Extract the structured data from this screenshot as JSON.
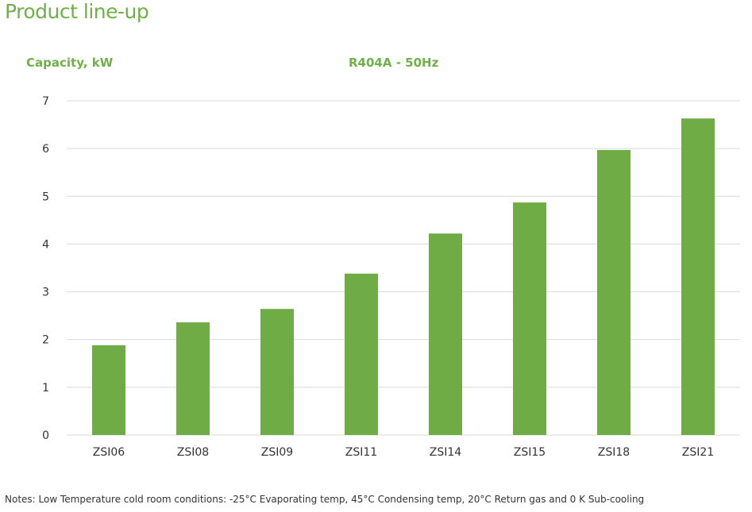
{
  "page": {
    "title": "Product line-up",
    "notes": "Notes: Low Temperature cold room conditions: -25°C Evaporating temp, 45°C Condensing temp,  20°C Return gas and 0 K Sub-cooling"
  },
  "chart_data": {
    "type": "bar",
    "title": "R404A - 50Hz",
    "xlabel": "",
    "ylabel": "Capacity, kW",
    "categories": [
      "ZSI06",
      "ZSI08",
      "ZSI09",
      "ZSI11",
      "ZSI14",
      "ZSI15",
      "ZSI18",
      "ZSI21"
    ],
    "values": [
      1.88,
      2.36,
      2.64,
      3.38,
      4.22,
      4.87,
      5.97,
      6.63
    ],
    "ylim": [
      0,
      7
    ],
    "yticks": [
      0,
      1,
      2,
      3,
      4,
      5,
      6,
      7
    ],
    "grid": true,
    "legend": "none",
    "colors": {
      "bar": "#6fac46",
      "grid": "#d9d9d9",
      "accent": "#6fb04a"
    }
  }
}
